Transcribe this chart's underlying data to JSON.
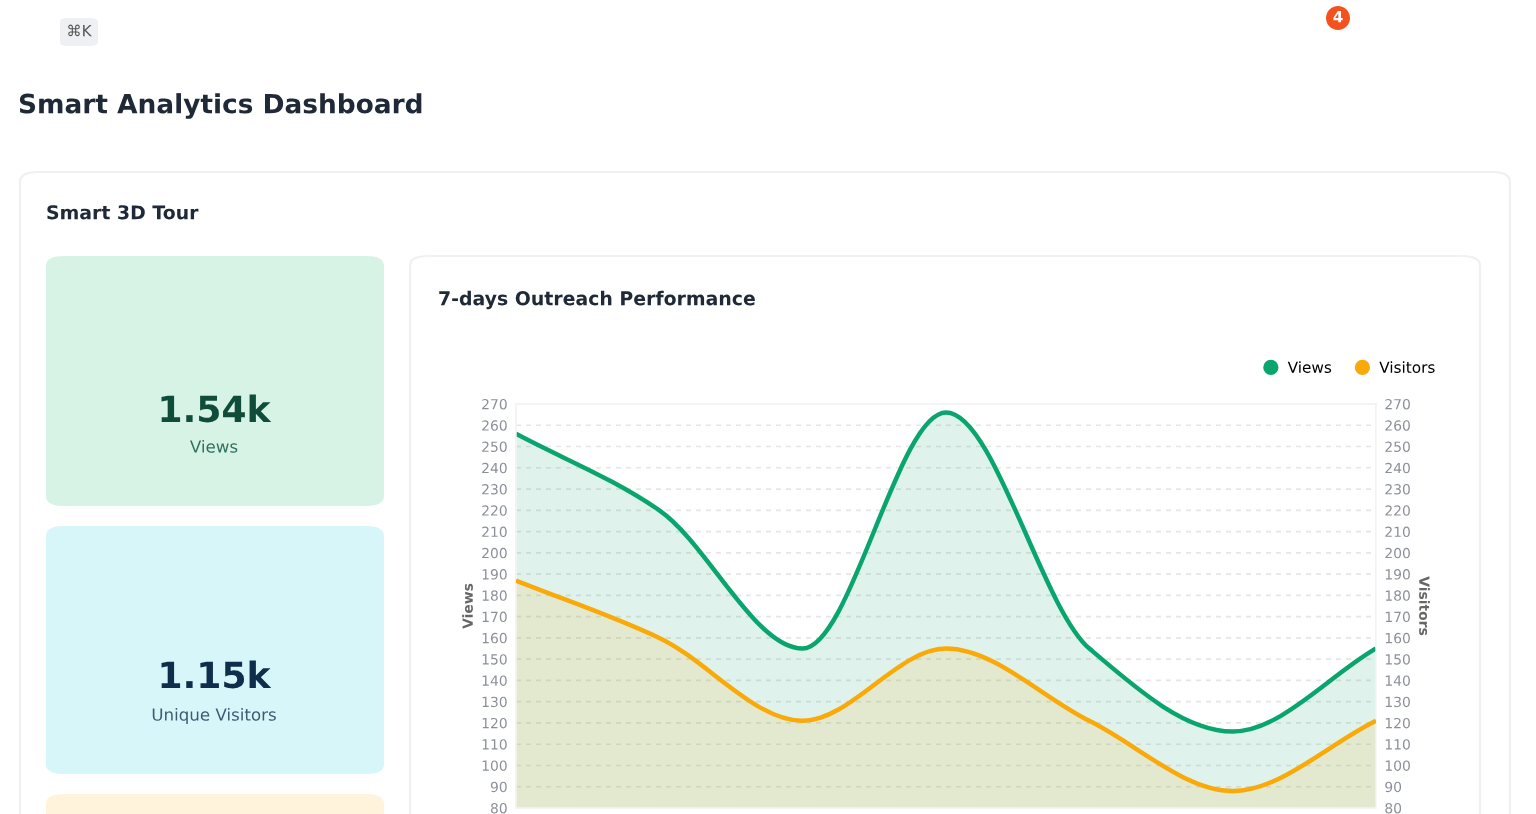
{
  "chart_data": [
    {
      "type": "other",
      "title": "Smart Analytics Dashboard",
      "subtitle": "Smart 3D Tour",
      "annotations": [
        "⌘K",
        "4",
        "1.54k",
        "Views",
        "1.15k",
        "Unique Visitors"
      ]
    },
    {
      "type": "area",
      "title": "7-days Outreach Performance",
      "ylabel": "Views",
      "y2label": "Visitors",
      "categories": [
        null,
        null,
        null,
        null,
        null,
        null,
        null
      ],
      "series": [
        {
          "name": "Views",
          "color": "#0aa56e",
          "values": [
            256,
            220,
            155,
            266,
            155,
            116,
            155
          ]
        },
        {
          "name": "Visitors",
          "color": "#f9a908",
          "axis": "y2",
          "values": [
            187,
            160,
            121,
            155,
            121,
            88,
            121
          ]
        }
      ],
      "ylim": [
        80,
        270
      ],
      "yticks": [
        80,
        90,
        100,
        110,
        120,
        130,
        140,
        150,
        160,
        170,
        180,
        190,
        200,
        210,
        220,
        230,
        240,
        250,
        260,
        270
      ],
      "y2lim": [
        80,
        270
      ],
      "y2ticks": [
        80,
        90,
        100,
        110,
        120,
        130,
        140,
        150,
        160,
        170,
        180,
        190,
        200,
        210,
        220,
        230,
        240,
        250,
        260,
        270
      ],
      "grid": "y",
      "legend": "top right",
      "marker": "none",
      "line_style": "solid"
    }
  ]
}
